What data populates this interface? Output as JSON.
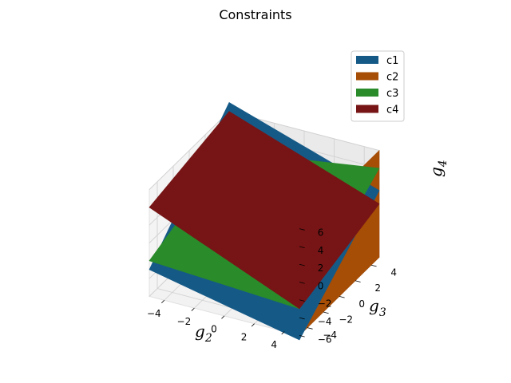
{
  "chart_data": {
    "type": "surface3d",
    "title": "Constraints",
    "xlabel": {
      "base": "g",
      "sub": "2"
    },
    "ylabel": {
      "base": "g",
      "sub": "3"
    },
    "zlabel": {
      "base": "g",
      "sub": "4"
    },
    "xlim": [
      -5,
      5
    ],
    "ylim": [
      -5,
      5
    ],
    "zlim": [
      -6,
      6
    ],
    "x_ticks": [
      "−4",
      "−2",
      "0",
      "2",
      "4"
    ],
    "x_tick_values": [
      -4,
      -2,
      0,
      2,
      4
    ],
    "y_ticks": [
      "−4",
      "−2",
      "0",
      "2",
      "4"
    ],
    "y_tick_values": [
      -4,
      -2,
      0,
      2,
      4
    ],
    "z_ticks": [
      "−6",
      "−4",
      "−2",
      "0",
      "2",
      "4",
      "6"
    ],
    "z_tick_values": [
      -6,
      -4,
      -2,
      0,
      2,
      4,
      6
    ],
    "grid": true,
    "legend_position": "top-right",
    "series": [
      {
        "name": "c1",
        "color": "#155a87",
        "corners_xyz": [
          [
            -5,
            -5,
            -3
          ],
          [
            5,
            -5,
            -6.5
          ],
          [
            5,
            5,
            1.5
          ],
          [
            -5,
            5,
            7
          ]
        ]
      },
      {
        "name": "c2",
        "color": "#a64d06",
        "corners_xyz": [
          [
            5,
            -5,
            6
          ],
          [
            5,
            5,
            6
          ],
          [
            5,
            5,
            -6
          ],
          [
            5,
            -5,
            -6
          ]
        ]
      },
      {
        "name": "c3",
        "color": "#2a8b2a",
        "corners_xyz": [
          [
            -5,
            -5,
            -2
          ],
          [
            5,
            -5,
            -3
          ],
          [
            5,
            5,
            4
          ],
          [
            -5,
            5,
            1.5
          ]
        ]
      },
      {
        "name": "c4",
        "color": "#771516",
        "corners_xyz": [
          [
            -5,
            -5,
            4
          ],
          [
            5,
            -5,
            -3
          ],
          [
            5,
            5,
            0
          ],
          [
            -5,
            5,
            6
          ]
        ]
      }
    ]
  }
}
